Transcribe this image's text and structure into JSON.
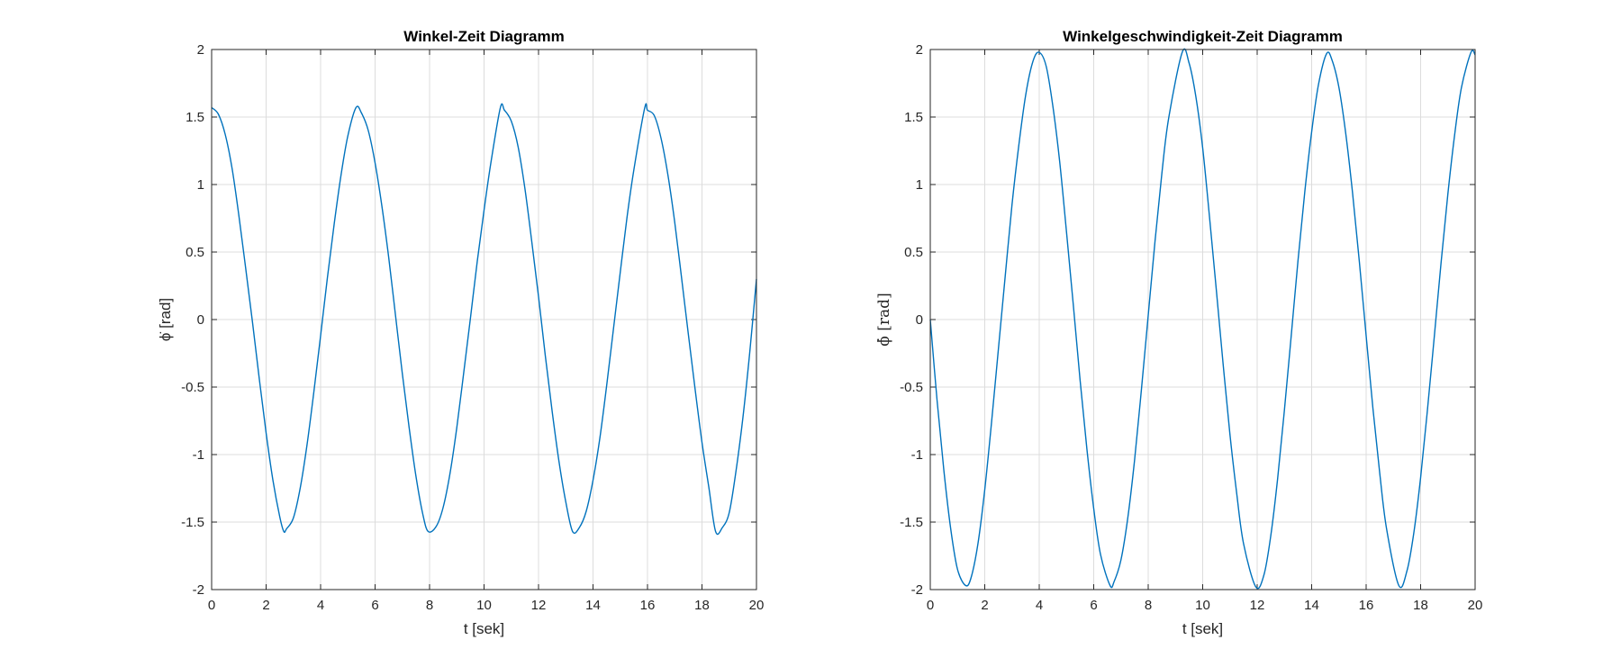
{
  "figure": {
    "background": "#ffffff"
  },
  "colors": {
    "line": "#0072bd",
    "grid": "#dcdcdc",
    "axes": "#262626"
  },
  "chart_data": [
    {
      "type": "line",
      "title": "Winkel-Zeit Diagramm",
      "xlabel": "t [sek]",
      "ylabel": "ϕ̇ [rad]",
      "xlim": [
        0,
        20
      ],
      "ylim": [
        -2,
        2
      ],
      "xticks": [
        "0",
        "2",
        "4",
        "6",
        "8",
        "10",
        "12",
        "14",
        "16",
        "18",
        "20"
      ],
      "yticks": [
        "-2",
        "-1.5",
        "-1",
        "-0.5",
        "0",
        "0.5",
        "1",
        "1.5",
        "2"
      ],
      "grid": true,
      "legend": "none",
      "series": [
        {
          "x": [
            0.0,
            0.25,
            0.5,
            0.75,
            1.0,
            1.25,
            1.5,
            1.75,
            2.0,
            2.25,
            2.5,
            2.65,
            2.75,
            3.0,
            3.25,
            3.5,
            3.75,
            4.0,
            4.25,
            4.5,
            4.75,
            5.0,
            5.3,
            5.5,
            5.75,
            6.0,
            6.25,
            6.5,
            6.75,
            7.0,
            7.25,
            7.5,
            7.75,
            7.95,
            8.25,
            8.5,
            8.75,
            9.0,
            9.25,
            9.5,
            9.75,
            10.0,
            10.25,
            10.6,
            10.75,
            11.0,
            11.25,
            11.5,
            11.75,
            12.0,
            12.25,
            12.5,
            12.75,
            13.0,
            13.25,
            13.5,
            13.75,
            14.0,
            14.25,
            14.5,
            14.75,
            15.0,
            15.25,
            15.5,
            15.9,
            16.0,
            16.25,
            16.5,
            16.75,
            17.0,
            17.25,
            17.5,
            17.75,
            18.0,
            18.25,
            18.5,
            18.75,
            19.0,
            19.25,
            19.5,
            19.75,
            20.0
          ],
          "y": [
            1.57,
            1.52,
            1.37,
            1.12,
            0.77,
            0.38,
            -0.02,
            -0.44,
            -0.84,
            -1.19,
            -1.46,
            -1.57,
            -1.55,
            -1.47,
            -1.25,
            -0.93,
            -0.54,
            -0.12,
            0.31,
            0.71,
            1.07,
            1.36,
            1.57,
            1.53,
            1.4,
            1.16,
            0.84,
            0.46,
            0.03,
            -0.4,
            -0.8,
            -1.16,
            -1.44,
            -1.57,
            -1.53,
            -1.39,
            -1.14,
            -0.8,
            -0.4,
            0.01,
            0.43,
            0.81,
            1.16,
            1.57,
            1.55,
            1.47,
            1.28,
            0.97,
            0.58,
            0.17,
            -0.27,
            -0.68,
            -1.05,
            -1.35,
            -1.57,
            -1.54,
            -1.42,
            -1.19,
            -0.88,
            -0.49,
            -0.07,
            0.35,
            0.76,
            1.11,
            1.57,
            1.55,
            1.51,
            1.34,
            1.07,
            0.72,
            0.31,
            -0.11,
            -0.52,
            -0.91,
            -1.24,
            -1.57,
            -1.54,
            -1.43,
            -1.12,
            -0.73,
            -0.25,
            0.3
          ]
        }
      ]
    },
    {
      "type": "line",
      "title": "Winkelgeschwindigkeit-Zeit Diagramm",
      "xlabel": "t [sek]",
      "ylabel": "ϕ̇ [rad]",
      "xlim": [
        0,
        20
      ],
      "ylim": [
        -2,
        2
      ],
      "xticks": [
        "0",
        "2",
        "4",
        "6",
        "8",
        "10",
        "12",
        "14",
        "16",
        "18",
        "20"
      ],
      "yticks": [
        "-2",
        "-1.5",
        "-1",
        "-0.5",
        "0",
        "0.5",
        "1",
        "1.5",
        "2"
      ],
      "grid": true,
      "legend": "none",
      "series": [
        {
          "x": [
            0.0,
            0.25,
            0.5,
            0.75,
            1.0,
            1.3,
            1.5,
            1.75,
            2.0,
            2.25,
            2.5,
            2.75,
            3.0,
            3.25,
            3.5,
            3.75,
            3.98,
            4.25,
            4.5,
            4.75,
            5.0,
            5.25,
            5.5,
            5.75,
            6.0,
            6.25,
            6.6,
            6.75,
            7.0,
            7.25,
            7.5,
            7.75,
            8.0,
            8.25,
            8.5,
            8.75,
            9.25,
            9.5,
            9.75,
            10.0,
            10.25,
            10.5,
            10.75,
            11.0,
            11.25,
            11.5,
            11.95,
            12.25,
            12.5,
            12.75,
            13.0,
            13.25,
            13.5,
            13.75,
            14.0,
            14.25,
            14.55,
            14.75,
            15.0,
            15.25,
            15.5,
            15.75,
            16.0,
            16.25,
            16.5,
            16.75,
            17.2,
            17.5,
            17.75,
            18.0,
            18.25,
            18.5,
            18.75,
            19.0,
            19.25,
            19.5,
            19.85,
            20.0
          ],
          "y": [
            0.0,
            -0.6,
            -1.12,
            -1.55,
            -1.85,
            -1.97,
            -1.91,
            -1.66,
            -1.26,
            -0.76,
            -0.22,
            0.32,
            0.85,
            1.29,
            1.66,
            1.9,
            1.98,
            1.88,
            1.58,
            1.17,
            0.65,
            0.11,
            -0.45,
            -0.96,
            -1.4,
            -1.74,
            -1.97,
            -1.94,
            -1.78,
            -1.47,
            -1.04,
            -0.52,
            0.03,
            0.58,
            1.08,
            1.49,
            1.98,
            1.9,
            1.65,
            1.27,
            0.76,
            0.22,
            -0.33,
            -0.85,
            -1.29,
            -1.66,
            -1.98,
            -1.89,
            -1.6,
            -1.18,
            -0.67,
            -0.12,
            0.44,
            0.95,
            1.39,
            1.74,
            1.97,
            1.92,
            1.72,
            1.38,
            0.94,
            0.43,
            -0.12,
            -0.66,
            -1.14,
            -1.55,
            -1.97,
            -1.86,
            -1.58,
            -1.17,
            -0.67,
            -0.13,
            0.42,
            0.93,
            1.37,
            1.72,
            1.98,
            1.96
          ]
        }
      ]
    }
  ]
}
